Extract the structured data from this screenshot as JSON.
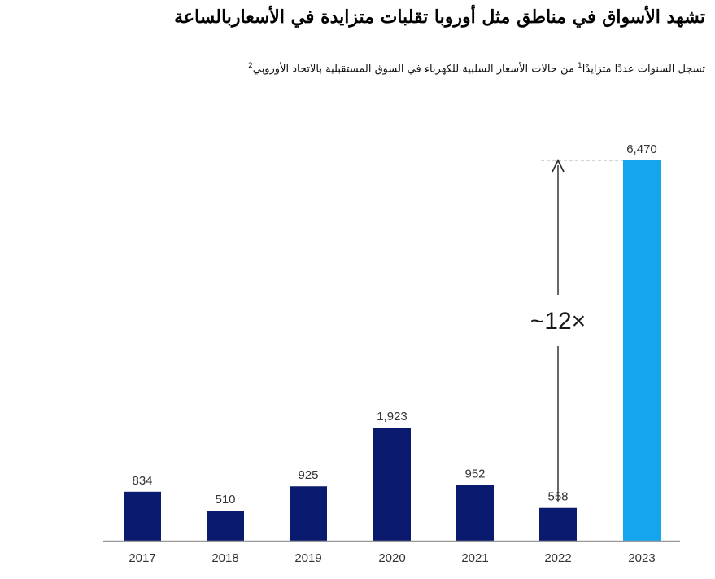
{
  "header": {
    "title": "تشهد الأسواق في مناطق مثل أوروبا تقلبات متزايدة في الأسعاربالساعة",
    "subtitle_text": "تسجل السنوات عددًا متزايدًا",
    "subtitle_sup1": "1",
    "subtitle_text2": " من حالات الأسعار السلبية للكهرباء في السوق المستقبلية بالاتحاد الأوروبي",
    "subtitle_sup2": "2"
  },
  "chart_data": {
    "type": "bar",
    "categories": [
      "2017",
      "2018",
      "2019",
      "2020",
      "2021",
      "2022",
      "2023"
    ],
    "values": [
      834,
      510,
      925,
      1923,
      952,
      558,
      6470
    ],
    "value_labels": [
      "834",
      "510",
      "925",
      "1,923",
      "952",
      "558",
      "6,470"
    ],
    "ylim": [
      0,
      6470
    ],
    "grid": false,
    "annotation": {
      "text": "~12×",
      "from_category": "2022",
      "to_category": "2023"
    },
    "colors": {
      "bar": "#0a1a6e",
      "highlight": "#15a4ee",
      "axis": "#999999",
      "arrow": "#333333"
    },
    "highlight_category": "2023"
  }
}
